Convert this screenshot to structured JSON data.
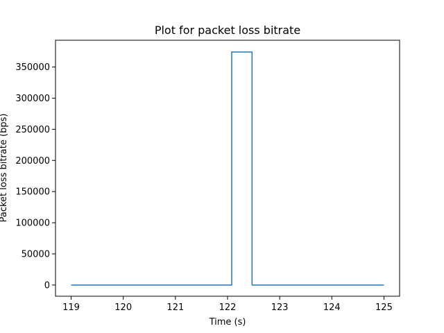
{
  "chart_data": {
    "type": "line",
    "title": "Plot for packet loss bitrate",
    "xlabel": "Time (s)",
    "ylabel": "Packet loss bitrate (bps)",
    "xlim": [
      118.7,
      125.3
    ],
    "ylim": [
      -18000,
      393000
    ],
    "xticks": [
      119,
      120,
      121,
      122,
      123,
      124,
      125
    ],
    "xtick_labels": [
      "119",
      "120",
      "121",
      "122",
      "123",
      "124",
      "125"
    ],
    "yticks": [
      0,
      50000,
      100000,
      150000,
      200000,
      250000,
      300000,
      350000
    ],
    "ytick_labels": [
      "0",
      "50000",
      "100000",
      "150000",
      "200000",
      "250000",
      "300000",
      "350000"
    ],
    "grid": false,
    "line_color": "#1f77b4",
    "series": [
      {
        "x": [
          119.0,
          122.08,
          122.08,
          122.47,
          122.47,
          125.0
        ],
        "y": [
          0,
          0,
          374000,
          374000,
          0,
          0
        ]
      }
    ]
  }
}
